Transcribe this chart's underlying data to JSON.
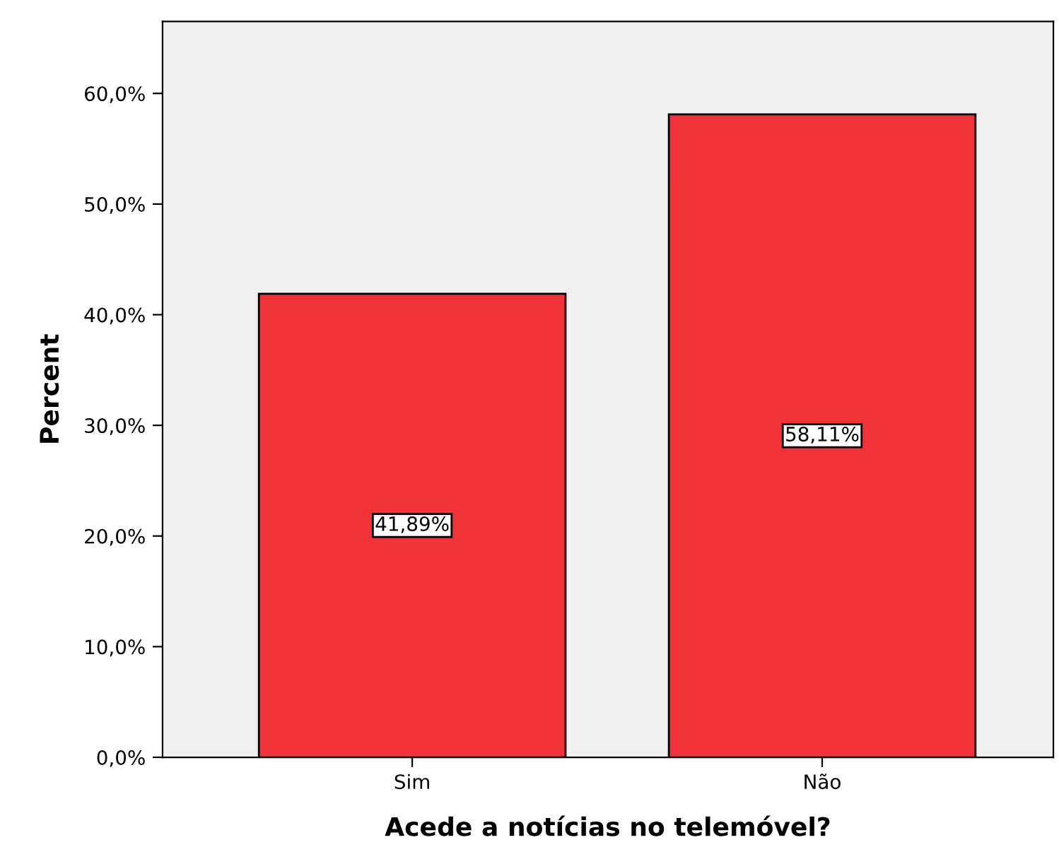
{
  "chart_data": {
    "type": "bar",
    "xlabel": "Acede a notícias no telemóvel?",
    "ylabel": "Percent",
    "categories": [
      "Sim",
      "Não"
    ],
    "values": [
      41.89,
      58.11
    ],
    "value_labels": [
      "41,89%",
      "58,11%"
    ],
    "color": "#ef3338",
    "ylim": [
      0,
      66.5
    ],
    "yticks": [
      {
        "value": 0,
        "label": "0,0%"
      },
      {
        "value": 10,
        "label": "10,0%"
      },
      {
        "value": 20,
        "label": "20,0%"
      },
      {
        "value": 30,
        "label": "30,0%"
      },
      {
        "value": 40,
        "label": "40,0%"
      },
      {
        "value": 50,
        "label": "50,0%"
      },
      {
        "value": 60,
        "label": "60,0%"
      }
    ],
    "grid": false,
    "legend": false
  }
}
